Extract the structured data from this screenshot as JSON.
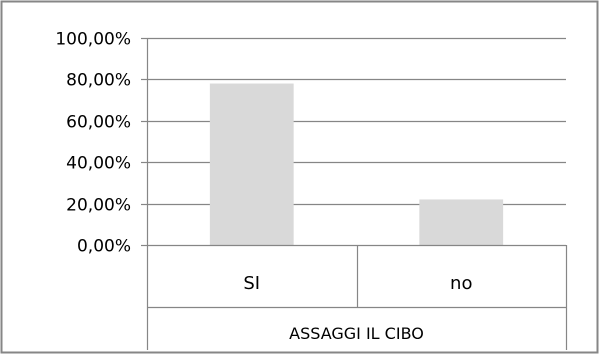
{
  "chart_data": {
    "type": "bar",
    "categories": [
      "SI",
      "no"
    ],
    "values": [
      0.78,
      0.22
    ],
    "ylim": [
      0,
      1
    ],
    "yticks": [
      "0,00%",
      "20,00%",
      "40,00%",
      "60,00%",
      "80,00%",
      "100,00%"
    ],
    "group_label": "ASSAGGI IL CIBO",
    "grid": true,
    "bar_color": "#d9d9d9",
    "grid_color": "#868686",
    "frame_color": "#868686"
  }
}
